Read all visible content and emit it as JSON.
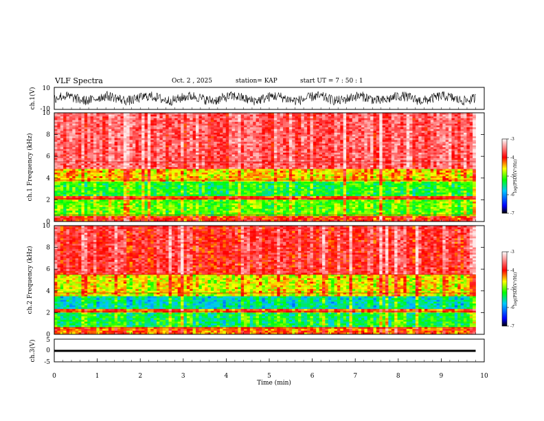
{
  "header": {
    "title": "VLF Spectra",
    "date": "Oct. 2 , 2025",
    "station": "station= KAP",
    "start_time": "start UT = 7 : 50 : 1"
  },
  "chart_data": [
    {
      "type": "line",
      "id": "ch1-waveform",
      "title": "ch.1 waveform",
      "ylabel": "ch.1(V)",
      "ylim": [
        -10,
        10
      ],
      "yticks": [
        "10",
        "-10"
      ],
      "x_range_min": [
        0,
        9.8
      ],
      "description_values": "dense noisy signal oscillating roughly between -6 and 6 V"
    },
    {
      "type": "heatmap",
      "id": "ch1-spectrogram",
      "ylabel": "ch.1 Frequency (kHz)",
      "ylim": [
        0,
        10
      ],
      "yticks": [
        "0",
        "2",
        "4",
        "6",
        "8",
        "10"
      ],
      "xlim": [
        0,
        10
      ],
      "data_extent_min": 9.8,
      "bands_khz": [
        {
          "from": 0,
          "to": 0.5,
          "level": -4.0
        },
        {
          "from": 0.5,
          "to": 2.0,
          "level": -5.0
        },
        {
          "from": 2.0,
          "to": 2.3,
          "level": -4.0
        },
        {
          "from": 2.3,
          "to": 3.6,
          "level": -5.2
        },
        {
          "from": 3.6,
          "to": 4.8,
          "level": -4.5
        },
        {
          "from": 4.8,
          "to": 10,
          "level": -3.6
        }
      ],
      "colorbar": {
        "label": "log(PSD)(V²/Hz)",
        "ticks": [
          "-3",
          "-4",
          "-5",
          "-6",
          "-7"
        ],
        "range": [
          -7,
          -3
        ]
      }
    },
    {
      "type": "heatmap",
      "id": "ch2-spectrogram",
      "ylabel": "ch.2 Frequency (kHz)",
      "ylim": [
        0,
        10
      ],
      "yticks": [
        "0",
        "2",
        "4",
        "6",
        "8",
        "10"
      ],
      "xlim": [
        0,
        10
      ],
      "data_extent_min": 9.8,
      "bands_khz": [
        {
          "from": 0,
          "to": 0.6,
          "level": -4.2
        },
        {
          "from": 0.6,
          "to": 2.0,
          "level": -5.3
        },
        {
          "from": 2.0,
          "to": 2.4,
          "level": -4.2
        },
        {
          "from": 2.4,
          "to": 3.5,
          "level": -5.6
        },
        {
          "from": 3.5,
          "to": 5.5,
          "level": -4.6
        },
        {
          "from": 5.5,
          "to": 10,
          "level": -3.8
        }
      ],
      "colorbar": {
        "label": "log(PSD)(V²/Hz)",
        "ticks": [
          "-3",
          "-4",
          "-5",
          "-6",
          "-7"
        ],
        "range": [
          -7,
          -3
        ]
      }
    },
    {
      "type": "line",
      "id": "ch3-waveform",
      "ylabel": "ch.3(V)",
      "ylim": [
        -5,
        5
      ],
      "yticks": [
        "5",
        "0",
        "-5"
      ],
      "level_min": -0.6,
      "level_max": 0.3,
      "xlabel": "Time (min)",
      "xlim": [
        0,
        10
      ],
      "xticks": [
        "0",
        "1",
        "2",
        "3",
        "4",
        "5",
        "6",
        "7",
        "8",
        "9",
        "10"
      ]
    }
  ],
  "colors": {
    "axis": "#000000",
    "waveform": "#000000",
    "colormap": [
      "#000000",
      "#0000ff",
      "#00c8ff",
      "#00ff00",
      "#ffff00",
      "#ff0000",
      "#ffffff"
    ]
  }
}
